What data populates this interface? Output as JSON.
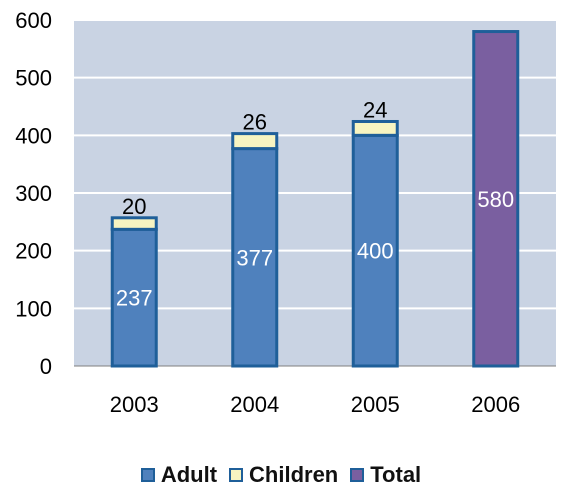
{
  "chart_data": {
    "type": "bar",
    "stacked": true,
    "categories": [
      "2003",
      "2004",
      "2005",
      "2006"
    ],
    "series": [
      {
        "name": "Adult",
        "values": [
          237,
          377,
          400,
          null
        ],
        "color": "#4f81bd"
      },
      {
        "name": "Children",
        "values": [
          20,
          26,
          24,
          null
        ],
        "color": "#f7f4c1"
      },
      {
        "name": "Total",
        "values": [
          null,
          null,
          null,
          580
        ],
        "color": "#7a5fa0"
      }
    ],
    "bar_data_labels": {
      "Adult": [
        "237",
        "377",
        "400",
        ""
      ],
      "Children": [
        "20",
        "26",
        "24",
        ""
      ],
      "Total": [
        "",
        "",
        "",
        "580"
      ]
    },
    "yticks": [
      "0",
      "100",
      "200",
      "300",
      "400",
      "500",
      "600"
    ],
    "ylim": [
      0,
      600
    ],
    "grid": true,
    "legend_position": "bottom",
    "plot_background": "#c9d3e3",
    "bar_outline": "#1f5f99"
  }
}
